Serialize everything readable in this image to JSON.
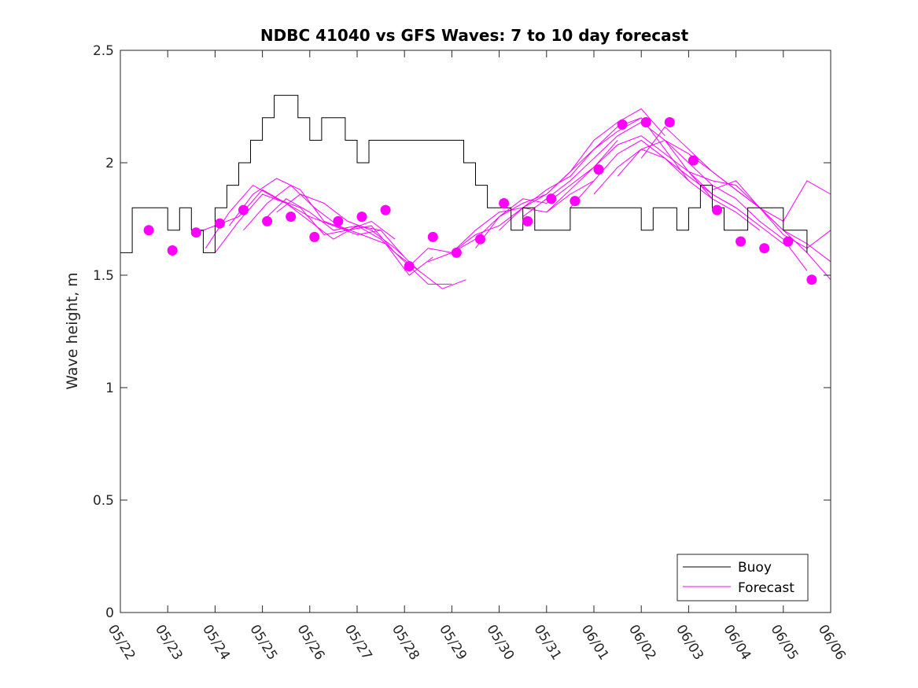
{
  "chart_data": {
    "type": "line",
    "title": "NDBC 41040 vs GFS Waves: 7 to 10 day forecast",
    "xlabel": "",
    "ylabel": "Wave height, m",
    "x_tick_labels": [
      "05/22",
      "05/23",
      "05/24",
      "05/25",
      "05/26",
      "05/27",
      "05/28",
      "05/29",
      "05/30",
      "05/31",
      "06/01",
      "06/02",
      "06/03",
      "06/04",
      "06/05",
      "06/06"
    ],
    "xlim_days": [
      0,
      15
    ],
    "ylim": [
      0,
      2.5
    ],
    "y_ticks": [
      0,
      0.5,
      1,
      1.5,
      2,
      2.5
    ],
    "y_tick_labels": [
      "0",
      "0.5",
      "1",
      "1.5",
      "2",
      "2.5"
    ],
    "grid": false,
    "legend_position": "bottom-right",
    "colors": {
      "buoy": "#000000",
      "forecast": "#ff00ff",
      "axis": "#262626"
    },
    "series": [
      {
        "name": "Buoy",
        "kind": "line",
        "x_day": [
          0,
          0.25,
          0.5,
          0.75,
          1,
          1.25,
          1.5,
          1.75,
          2,
          2.25,
          2.5,
          2.75,
          3,
          3.25,
          3.5,
          3.75,
          4,
          4.25,
          4.5,
          4.75,
          5,
          5.25,
          5.5,
          5.75,
          6,
          6.25,
          6.5,
          6.75,
          7,
          7.25,
          7.5,
          7.75,
          8,
          8.25,
          8.5,
          8.75,
          9,
          9.25,
          9.5,
          9.75,
          10,
          10.25,
          10.5,
          10.75,
          11,
          11.25,
          11.5,
          11.75,
          12,
          12.25,
          12.5,
          12.75,
          13,
          13.25,
          13.5,
          13.75,
          14,
          14.25,
          14.5
        ],
        "values": [
          1.6,
          1.8,
          1.8,
          1.8,
          1.7,
          1.8,
          1.7,
          1.6,
          1.8,
          1.9,
          2.0,
          2.1,
          2.2,
          2.3,
          2.3,
          2.2,
          2.1,
          2.2,
          2.2,
          2.1,
          2.0,
          2.1,
          2.1,
          2.1,
          2.1,
          2.1,
          2.1,
          2.1,
          2.1,
          2.0,
          1.9,
          1.8,
          1.8,
          1.7,
          1.8,
          1.7,
          1.7,
          1.7,
          1.8,
          1.8,
          1.8,
          1.8,
          1.8,
          1.8,
          1.7,
          1.8,
          1.8,
          1.7,
          1.8,
          1.9,
          1.8,
          1.7,
          1.7,
          1.8,
          1.8,
          1.8,
          1.7,
          1.7,
          1.6
        ]
      },
      {
        "name": "Forecast",
        "kind": "dots",
        "x_day": [
          0.6,
          1.1,
          1.6,
          2.1,
          2.6,
          3.1,
          3.6,
          4.1,
          4.6,
          5.1,
          5.6,
          6.1,
          6.6,
          7.1,
          7.6,
          8.1,
          8.6,
          9.1,
          9.6,
          10.1,
          10.6,
          11.1,
          11.6,
          12.1,
          12.6,
          13.1,
          13.6,
          14.1,
          14.6
        ],
        "values": [
          1.7,
          1.61,
          1.69,
          1.73,
          1.79,
          1.74,
          1.76,
          1.67,
          1.74,
          1.76,
          1.79,
          1.54,
          1.67,
          1.6,
          1.66,
          1.82,
          1.74,
          1.84,
          1.83,
          1.97,
          2.17,
          2.18,
          2.18,
          2.01,
          1.79,
          1.65,
          1.62,
          1.65,
          1.48
        ]
      }
    ],
    "forecast_runs": [
      {
        "x_day": [
          1.5,
          2.0,
          2.5,
          3.0,
          3.5,
          4.0,
          4.5,
          5.0,
          5.5
        ],
        "values": [
          1.68,
          1.72,
          1.76,
          1.88,
          1.82,
          1.74,
          1.66,
          1.72,
          1.7
        ]
      },
      {
        "x_day": [
          1.8,
          2.3,
          2.8,
          3.3,
          3.8,
          4.3,
          4.8,
          5.3,
          5.8
        ],
        "values": [
          1.62,
          1.78,
          1.9,
          1.84,
          1.8,
          1.68,
          1.7,
          1.74,
          1.66
        ]
      },
      {
        "x_day": [
          2.0,
          2.5,
          3.0,
          3.5,
          4.0,
          4.5,
          5.0,
          5.5,
          6.0
        ],
        "values": [
          1.6,
          1.74,
          1.86,
          1.82,
          1.76,
          1.72,
          1.68,
          1.7,
          1.58
        ]
      },
      {
        "x_day": [
          2.3,
          2.8,
          3.3,
          3.8,
          4.3,
          4.8,
          5.3,
          5.8,
          6.3
        ],
        "values": [
          1.72,
          1.86,
          1.93,
          1.88,
          1.74,
          1.7,
          1.72,
          1.6,
          1.52
        ]
      },
      {
        "x_day": [
          2.6,
          3.1,
          3.6,
          4.1,
          4.6,
          5.1,
          5.6,
          6.1,
          6.6
        ],
        "values": [
          1.7,
          1.82,
          1.9,
          1.8,
          1.72,
          1.68,
          1.64,
          1.5,
          1.58
        ]
      },
      {
        "x_day": [
          3.0,
          3.5,
          4.0,
          4.5,
          5.0,
          5.5,
          6.0,
          6.5,
          7.0
        ],
        "values": [
          1.74,
          1.84,
          1.78,
          1.7,
          1.72,
          1.66,
          1.56,
          1.46,
          1.46
        ]
      },
      {
        "x_day": [
          3.3,
          3.8,
          4.3,
          4.8,
          5.3,
          5.8,
          6.3,
          6.8,
          7.3
        ],
        "values": [
          1.78,
          1.86,
          1.82,
          1.74,
          1.7,
          1.62,
          1.52,
          1.44,
          1.48
        ]
      },
      {
        "x_day": [
          6.0,
          6.5,
          7.0,
          7.5,
          8.0,
          8.5,
          9.0,
          9.5,
          10.0
        ],
        "values": [
          1.52,
          1.62,
          1.6,
          1.68,
          1.72,
          1.8,
          1.78,
          1.86,
          1.92
        ]
      },
      {
        "x_day": [
          6.5,
          7.0,
          7.5,
          8.0,
          8.5,
          9.0,
          9.5,
          10.0,
          10.5
        ],
        "values": [
          1.56,
          1.6,
          1.66,
          1.76,
          1.84,
          1.82,
          1.9,
          1.98,
          2.1
        ]
      },
      {
        "x_day": [
          7.0,
          7.5,
          8.0,
          8.5,
          9.0,
          9.5,
          10.0,
          10.5,
          11.0
        ],
        "values": [
          1.6,
          1.7,
          1.78,
          1.8,
          1.88,
          1.94,
          2.06,
          2.14,
          2.2
        ]
      },
      {
        "x_day": [
          7.5,
          8.0,
          8.5,
          9.0,
          9.5,
          10.0,
          10.5,
          11.0,
          11.5
        ],
        "values": [
          1.62,
          1.76,
          1.82,
          1.86,
          1.96,
          2.1,
          2.18,
          2.24,
          2.12
        ]
      },
      {
        "x_day": [
          8.0,
          8.5,
          9.0,
          9.5,
          10.0,
          10.5,
          11.0,
          11.5,
          12.0
        ],
        "values": [
          1.7,
          1.8,
          1.86,
          1.96,
          2.06,
          2.16,
          2.2,
          2.06,
          1.92
        ]
      },
      {
        "x_day": [
          8.5,
          9.0,
          9.5,
          10.0,
          10.5,
          11.0,
          11.5,
          12.0,
          12.5
        ],
        "values": [
          1.76,
          1.84,
          1.92,
          2.02,
          2.12,
          2.18,
          2.1,
          1.96,
          1.84
        ]
      },
      {
        "x_day": [
          9.0,
          9.5,
          10.0,
          10.5,
          11.0,
          11.5,
          12.0,
          12.5,
          13.0
        ],
        "values": [
          1.78,
          1.88,
          1.98,
          2.08,
          2.12,
          2.04,
          1.96,
          1.86,
          1.8
        ]
      },
      {
        "x_day": [
          9.5,
          10.0,
          10.5,
          11.0,
          11.5,
          12.0,
          12.5,
          13.0,
          13.5
        ],
        "values": [
          1.8,
          1.92,
          2.04,
          2.1,
          2.02,
          1.92,
          1.84,
          1.78,
          1.7
        ]
      },
      {
        "x_day": [
          10.0,
          10.5,
          11.0,
          11.5,
          12.0,
          12.5,
          13.0,
          13.5,
          14.0
        ],
        "values": [
          1.86,
          1.98,
          2.06,
          2.02,
          1.94,
          1.86,
          1.8,
          1.72,
          1.64
        ]
      },
      {
        "x_day": [
          10.5,
          11.0,
          11.5,
          12.0,
          12.5,
          13.0,
          13.5,
          14.0,
          14.5
        ],
        "values": [
          1.94,
          2.06,
          2.1,
          2.0,
          1.9,
          1.84,
          1.74,
          1.66,
          1.52
        ]
      },
      {
        "x_day": [
          11.0,
          11.5,
          12.0,
          12.5,
          13.0,
          13.5,
          14.0,
          14.5,
          15.0
        ],
        "values": [
          2.02,
          2.16,
          2.06,
          1.96,
          1.88,
          1.8,
          1.7,
          1.6,
          1.48
        ]
      },
      {
        "x_day": [
          11.5,
          12.0,
          12.5,
          13.0,
          13.5,
          14.0,
          14.5,
          15.0
        ],
        "values": [
          2.1,
          2.04,
          1.96,
          1.88,
          1.8,
          1.7,
          1.64,
          1.56
        ]
      },
      {
        "x_day": [
          12.0,
          12.5,
          13.0,
          13.5,
          14.0,
          14.5,
          15.0
        ],
        "values": [
          1.96,
          1.92,
          1.9,
          1.8,
          1.68,
          1.62,
          1.7
        ]
      },
      {
        "x_day": [
          12.5,
          13.0,
          13.5,
          14.0,
          14.5,
          15.0
        ],
        "values": [
          1.88,
          1.92,
          1.8,
          1.74,
          1.92,
          1.86
        ]
      }
    ]
  }
}
